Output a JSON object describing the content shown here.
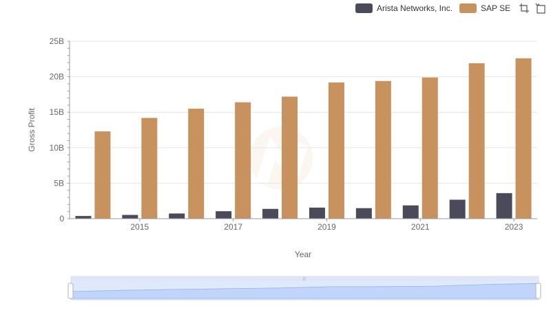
{
  "chart_data": {
    "type": "bar",
    "categories": [
      "2014",
      "2015",
      "2016",
      "2017",
      "2018",
      "2019",
      "2020",
      "2021",
      "2022",
      "2023"
    ],
    "x_tick_labels": [
      "2015",
      "2017",
      "2019",
      "2021",
      "2023"
    ],
    "y_tick_labels": [
      "0",
      "5B",
      "10B",
      "15B",
      "20B",
      "25B"
    ],
    "y_ticks": [
      0,
      5000000000,
      10000000000,
      15000000000,
      20000000000,
      25000000000
    ],
    "ylim": [
      0,
      25000000000
    ],
    "xlabel": "Year",
    "ylabel": "Gross Profit",
    "legend_position": "top-right",
    "grid": true,
    "series": [
      {
        "name": "Arista Networks, Inc.",
        "color": "#4a4a5a",
        "values": [
          380000000,
          530000000,
          730000000,
          1050000000,
          1380000000,
          1560000000,
          1480000000,
          1870000000,
          2670000000,
          3600000000
        ]
      },
      {
        "name": "SAP SE",
        "color": "#c8925e",
        "values": [
          12300000000,
          14200000000,
          15500000000,
          16400000000,
          17200000000,
          19200000000,
          19400000000,
          19900000000,
          21900000000,
          22600000000
        ]
      }
    ]
  },
  "legend": {
    "items": [
      {
        "label": "Arista Networks, Inc.",
        "color": "#4a4a5a"
      },
      {
        "label": "SAP SE",
        "color": "#c8925e"
      }
    ]
  },
  "toolbox": {
    "icons": [
      "zoom-icon",
      "restore-icon"
    ]
  },
  "data_zoom": {
    "range_start": 0,
    "range_end": 100
  }
}
